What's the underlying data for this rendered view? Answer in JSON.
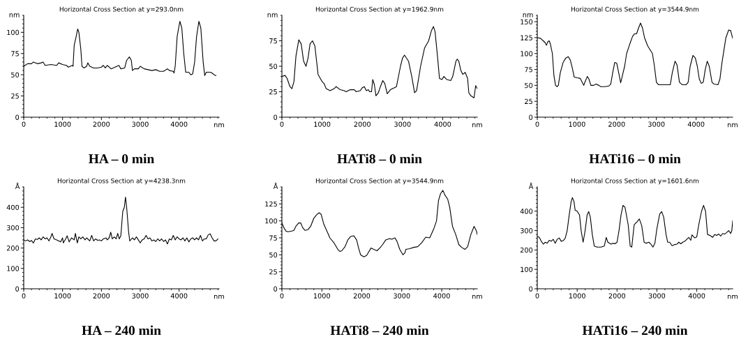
{
  "chart_data": [
    {
      "type": "line",
      "title": "Horizontal Cross Section at y=293.0nm",
      "xlabel": "nm",
      "ylabel": "nm",
      "annotations": [
        "HA – 0 min"
      ],
      "xlim": [
        0,
        5030
      ],
      "ylim": [
        0,
        120
      ],
      "xticks": [
        0,
        1000,
        2000,
        3000,
        4000
      ],
      "yticks": [
        0,
        25,
        50,
        75,
        100
      ],
      "x": [
        0,
        100,
        200,
        250,
        350,
        450,
        500,
        550,
        700,
        850,
        900,
        1000,
        1100,
        1150,
        1250,
        1270,
        1300,
        1350,
        1390,
        1420,
        1470,
        1500,
        1550,
        1620,
        1650,
        1700,
        1800,
        1900,
        2000,
        2050,
        2100,
        2150,
        2250,
        2350,
        2450,
        2500,
        2600,
        2650,
        2720,
        2770,
        2800,
        2850,
        2950,
        3000,
        3100,
        3200,
        3300,
        3400,
        3500,
        3600,
        3700,
        3750,
        3850,
        3870,
        3900,
        3950,
        4020,
        4070,
        4120,
        4170,
        4250,
        4300,
        4350,
        4400,
        4450,
        4510,
        4560,
        4620,
        4660,
        4700,
        4800,
        4850,
        4900,
        4950
      ],
      "series": [
        {
          "color": "#000000",
          "values": [
            60,
            63,
            63,
            65,
            63,
            64,
            65,
            61,
            62,
            61,
            64,
            62,
            61,
            59,
            61,
            60,
            85,
            95,
            104,
            100,
            80,
            60,
            58,
            60,
            64,
            60,
            58,
            58,
            59,
            61,
            58,
            61,
            57,
            59,
            61,
            57,
            58,
            67,
            71,
            67,
            55,
            57,
            57,
            60,
            57,
            56,
            55,
            56,
            54,
            54,
            57,
            55,
            54,
            52,
            60,
            95,
            113,
            105,
            75,
            53,
            53,
            50,
            51,
            65,
            95,
            113,
            105,
            65,
            49,
            53,
            53,
            52,
            50,
            49
          ]
        }
      ]
    },
    {
      "type": "line",
      "title": "Horizontal Cross Section at y=1962.9nm",
      "xlabel": "nm",
      "ylabel": "nm",
      "annotations": [
        "HATi8 – 0 min"
      ],
      "xlim": [
        0,
        4860
      ],
      "ylim": [
        0,
        100
      ],
      "xticks": [
        0,
        1000,
        2000,
        3000,
        4000
      ],
      "yticks": [
        0,
        25,
        50,
        75
      ],
      "x": [
        0,
        80,
        130,
        200,
        250,
        300,
        350,
        420,
        480,
        540,
        600,
        650,
        700,
        760,
        820,
        900,
        1000,
        1050,
        1100,
        1200,
        1300,
        1350,
        1450,
        1550,
        1600,
        1700,
        1800,
        1850,
        1950,
        2000,
        2050,
        2100,
        2150,
        2180,
        2230,
        2260,
        2300,
        2340,
        2400,
        2450,
        2510,
        2560,
        2620,
        2700,
        2800,
        2850,
        2950,
        3000,
        3050,
        3150,
        3230,
        3300,
        3350,
        3450,
        3550,
        3650,
        3720,
        3770,
        3810,
        3870,
        3920,
        3980,
        4030,
        4100,
        4200,
        4250,
        4330,
        4360,
        4400,
        4450,
        4500,
        4560,
        4620,
        4650,
        4700,
        4780,
        4820,
        4860
      ],
      "series": [
        {
          "color": "#000000",
          "values": [
            40,
            41,
            38,
            30,
            28,
            35,
            60,
            76,
            72,
            55,
            50,
            58,
            72,
            75,
            70,
            42,
            35,
            33,
            28,
            26,
            28,
            30,
            27,
            26,
            25,
            27,
            27,
            25,
            26,
            29,
            30,
            26,
            27,
            25,
            25,
            37,
            32,
            21,
            24,
            30,
            36,
            33,
            23,
            27,
            29,
            30,
            50,
            58,
            61,
            55,
            40,
            24,
            26,
            50,
            68,
            75,
            85,
            89,
            84,
            60,
            38,
            37,
            40,
            37,
            36,
            40,
            55,
            57,
            55,
            46,
            42,
            44,
            38,
            24,
            21,
            19,
            31,
            28
          ]
        }
      ]
    },
    {
      "type": "line",
      "title": "Horizontal Cross Section at y=3544.9nm",
      "xlabel": "nm",
      "ylabel": "nm",
      "annotations": [
        "HATi16 – 0 min"
      ],
      "xlim": [
        0,
        4920
      ],
      "ylim": [
        0,
        160
      ],
      "xticks": [
        0,
        1000,
        2000,
        3000,
        4000
      ],
      "yticks": [
        0,
        25,
        50,
        75,
        100,
        125,
        150
      ],
      "x": [
        0,
        80,
        150,
        200,
        230,
        270,
        300,
        330,
        380,
        420,
        460,
        500,
        530,
        580,
        650,
        720,
        780,
        830,
        880,
        930,
        1000,
        1080,
        1130,
        1170,
        1200,
        1260,
        1300,
        1350,
        1420,
        1480,
        1550,
        1600,
        1700,
        1800,
        1850,
        1900,
        1950,
        2000,
        2050,
        2100,
        2150,
        2200,
        2250,
        2330,
        2400,
        2450,
        2500,
        2550,
        2600,
        2650,
        2700,
        2780,
        2850,
        2900,
        2950,
        3000,
        3050,
        3150,
        3250,
        3350,
        3400,
        3470,
        3520,
        3580,
        3650,
        3750,
        3800,
        3850,
        3920,
        3980,
        4030,
        4080,
        4130,
        4180,
        4230,
        4280,
        4330,
        4400,
        4450,
        4550,
        4600,
        4650,
        4700,
        4750,
        4820,
        4870,
        4920
      ],
      "series": [
        {
          "color": "#000000",
          "values": [
            125,
            124,
            120,
            117,
            113,
            119,
            120,
            115,
            100,
            65,
            50,
            48,
            50,
            70,
            86,
            93,
            95,
            90,
            78,
            63,
            62,
            61,
            55,
            50,
            55,
            64,
            60,
            50,
            50,
            52,
            50,
            48,
            48,
            49,
            52,
            70,
            86,
            85,
            70,
            54,
            67,
            80,
            100,
            115,
            127,
            131,
            131,
            140,
            148,
            140,
            125,
            112,
            105,
            100,
            80,
            55,
            51,
            51,
            51,
            51,
            70,
            88,
            82,
            55,
            51,
            51,
            55,
            80,
            97,
            93,
            80,
            60,
            53,
            55,
            75,
            88,
            80,
            55,
            52,
            51,
            60,
            85,
            105,
            125,
            137,
            136,
            124
          ]
        }
      ]
    },
    {
      "type": "line",
      "title": "Horizontal Cross Section at y=4238.3nm",
      "xlabel": "nm",
      "ylabel": "Å",
      "annotations": [
        "HA – 240 min"
      ],
      "xlim": [
        0,
        5030
      ],
      "ylim": [
        0,
        500
      ],
      "xticks": [
        0,
        1000,
        2000,
        3000,
        4000
      ],
      "yticks": [
        0,
        100,
        200,
        300,
        400
      ],
      "x": [
        0,
        50,
        100,
        150,
        200,
        250,
        300,
        350,
        400,
        450,
        500,
        550,
        600,
        650,
        700,
        730,
        780,
        850,
        950,
        1000,
        1020,
        1080,
        1120,
        1170,
        1230,
        1300,
        1330,
        1380,
        1420,
        1470,
        1520,
        1580,
        1620,
        1700,
        1750,
        1800,
        1850,
        1900,
        1950,
        2000,
        2050,
        2120,
        2150,
        2200,
        2240,
        2280,
        2330,
        2380,
        2420,
        2460,
        2500,
        2550,
        2590,
        2620,
        2650,
        2700,
        2730,
        2800,
        2850,
        2900,
        2950,
        3000,
        3050,
        3100,
        3150,
        3200,
        3250,
        3300,
        3350,
        3400,
        3450,
        3500,
        3550,
        3600,
        3650,
        3700,
        3750,
        3800,
        3850,
        3900,
        3950,
        4000,
        4050,
        4100,
        4150,
        4200,
        4250,
        4300,
        4350,
        4400,
        4450,
        4500,
        4550,
        4600,
        4650,
        4700,
        4750,
        4800,
        4850,
        4900,
        4950,
        5000
      ],
      "series": [
        {
          "color": "#000000",
          "values": [
            240,
            235,
            240,
            232,
            237,
            225,
            245,
            242,
            250,
            240,
            255,
            245,
            250,
            235,
            255,
            272,
            245,
            240,
            230,
            250,
            225,
            245,
            260,
            230,
            250,
            240,
            272,
            225,
            255,
            245,
            255,
            240,
            250,
            235,
            262,
            235,
            245,
            238,
            240,
            235,
            245,
            250,
            240,
            250,
            278,
            245,
            255,
            245,
            272,
            245,
            260,
            380,
            400,
            450,
            400,
            280,
            235,
            250,
            240,
            255,
            240,
            225,
            240,
            245,
            262,
            245,
            250,
            235,
            240,
            232,
            245,
            235,
            245,
            232,
            240,
            220,
            245,
            240,
            262,
            240,
            255,
            245,
            240,
            250,
            235,
            250,
            230,
            245,
            250,
            240,
            250,
            240,
            262,
            235,
            245,
            245,
            265,
            270,
            250,
            235,
            235,
            245
          ]
        }
      ]
    },
    {
      "type": "line",
      "title": "Horizontal Cross Section at y=3544.9nm",
      "xlabel": "nm",
      "ylabel": "Å",
      "annotations": [
        "HATi8 – 240 min"
      ],
      "xlim": [
        0,
        4890
      ],
      "ylim": [
        0,
        150
      ],
      "xticks": [
        0,
        1000,
        2000,
        3000,
        4000
      ],
      "yticks": [
        0,
        25,
        50,
        75,
        100,
        125
      ],
      "x": [
        0,
        50,
        100,
        150,
        250,
        300,
        350,
        420,
        470,
        520,
        580,
        650,
        720,
        800,
        870,
        930,
        980,
        1050,
        1150,
        1200,
        1300,
        1400,
        1450,
        1500,
        1580,
        1650,
        1720,
        1800,
        1870,
        1920,
        1970,
        2050,
        2120,
        2180,
        2230,
        2300,
        2380,
        2450,
        2520,
        2600,
        2700,
        2750,
        2830,
        2880,
        2950,
        3030,
        3080,
        3100,
        3200,
        3300,
        3400,
        3500,
        3600,
        3700,
        3800,
        3870,
        3920,
        3970,
        4030,
        4080,
        4150,
        4200,
        4270,
        4350,
        4430,
        4500,
        4580,
        4650,
        4730,
        4810,
        4870,
        4890
      ],
      "series": [
        {
          "color": "#000000",
          "values": [
            97,
            90,
            85,
            84,
            85,
            86,
            92,
            97,
            97,
            90,
            86,
            87,
            92,
            104,
            109,
            112,
            110,
            95,
            82,
            75,
            68,
            58,
            55,
            56,
            62,
            72,
            77,
            78,
            72,
            60,
            50,
            47,
            49,
            55,
            60,
            58,
            56,
            60,
            65,
            72,
            74,
            73,
            75,
            70,
            58,
            50,
            53,
            58,
            59,
            61,
            62,
            68,
            76,
            75,
            88,
            100,
            130,
            140,
            145,
            138,
            132,
            120,
            92,
            80,
            65,
            61,
            58,
            62,
            80,
            92,
            85,
            80
          ]
        }
      ]
    },
    {
      "type": "line",
      "title": "Horizontal Cross Section at y=1601.6nm",
      "xlabel": "nm",
      "ylabel": "Å",
      "annotations": [
        "HATi16 – 240 min"
      ],
      "xlim": [
        0,
        4900
      ],
      "ylim": [
        0,
        525
      ],
      "xticks": [
        0,
        1000,
        2000,
        3000,
        4000
      ],
      "yticks": [
        0,
        100,
        200,
        300,
        400
      ],
      "x": [
        0,
        50,
        100,
        150,
        200,
        250,
        300,
        350,
        400,
        450,
        500,
        550,
        600,
        650,
        700,
        750,
        800,
        850,
        880,
        920,
        950,
        1000,
        1060,
        1100,
        1150,
        1200,
        1250,
        1290,
        1330,
        1380,
        1430,
        1500,
        1600,
        1680,
        1730,
        1770,
        1850,
        1900,
        1950,
        2000,
        2050,
        2100,
        2150,
        2200,
        2280,
        2330,
        2370,
        2430,
        2500,
        2560,
        2620,
        2680,
        2730,
        2800,
        2850,
        2900,
        2950,
        3000,
        3070,
        3120,
        3170,
        3230,
        3270,
        3320,
        3380,
        3450,
        3500,
        3550,
        3600,
        3650,
        3700,
        3750,
        3800,
        3850,
        3880,
        3950,
        4000,
        4050,
        4120,
        4170,
        4220,
        4270,
        4330,
        4400,
        4450,
        4500,
        4550,
        4600,
        4650,
        4700,
        4750,
        4800,
        4850,
        4880,
        4900
      ],
      "series": [
        {
          "color": "#000000",
          "values": [
            270,
            265,
            245,
            230,
            240,
            235,
            250,
            245,
            255,
            235,
            255,
            262,
            245,
            248,
            260,
            300,
            380,
            450,
            470,
            450,
            405,
            400,
            380,
            300,
            240,
            300,
            380,
            398,
            370,
            280,
            220,
            215,
            215,
            220,
            265,
            240,
            230,
            235,
            232,
            240,
            300,
            380,
            430,
            420,
            330,
            220,
            215,
            330,
            345,
            360,
            325,
            240,
            235,
            240,
            230,
            215,
            235,
            310,
            385,
            398,
            370,
            280,
            240,
            240,
            222,
            228,
            230,
            240,
            232,
            240,
            245,
            255,
            265,
            250,
            278,
            262,
            268,
            330,
            400,
            430,
            400,
            280,
            275,
            265,
            280,
            275,
            282,
            272,
            285,
            282,
            290,
            300,
            285,
            300,
            350
          ]
        }
      ]
    }
  ]
}
